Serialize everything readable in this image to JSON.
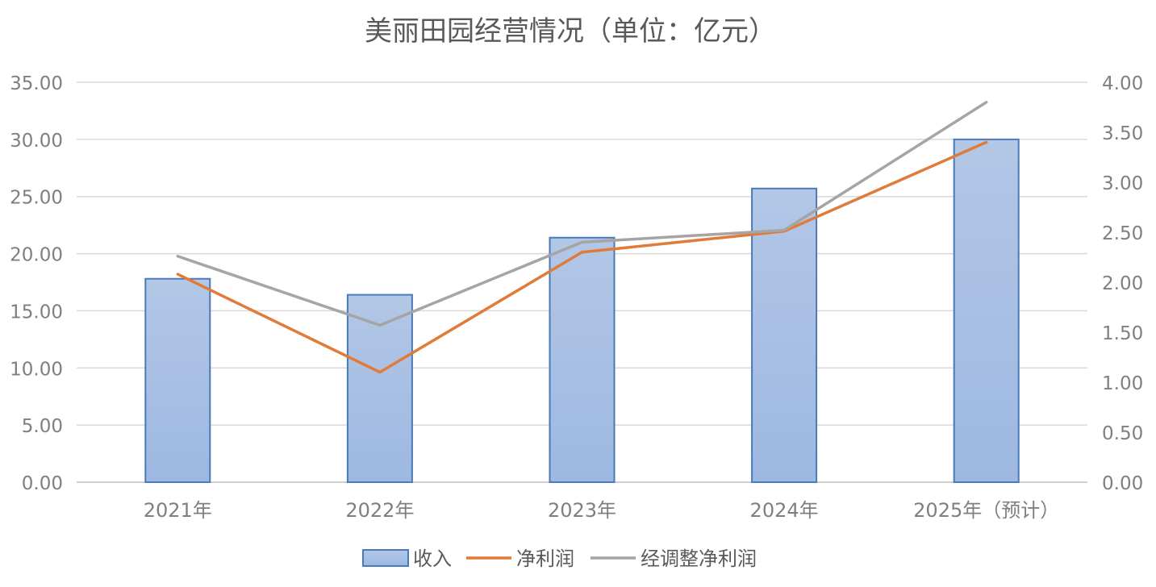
{
  "chart_data": {
    "type": "bar",
    "title": "美丽田园经营情况（单位：亿元）",
    "categories": [
      "2021年",
      "2022年",
      "2023年",
      "2024年",
      "2025年（预计）"
    ],
    "y_left": {
      "ylim": [
        0,
        35
      ],
      "ticks": [
        "0.00",
        "5.00",
        "10.00",
        "15.00",
        "20.00",
        "25.00",
        "30.00",
        "35.00"
      ]
    },
    "y_right": {
      "ylim": [
        0,
        4
      ],
      "ticks": [
        "0.00",
        "0.50",
        "1.00",
        "1.50",
        "2.00",
        "2.50",
        "3.00",
        "3.50",
        "4.00"
      ]
    },
    "series": [
      {
        "name": "收入",
        "type": "bar",
        "axis": "left",
        "color": "#9db8e2",
        "values": [
          17.8,
          16.4,
          21.4,
          25.7,
          30.0
        ]
      },
      {
        "name": "净利润",
        "type": "line",
        "axis": "right",
        "color": "#e07b39",
        "values": [
          2.08,
          1.1,
          2.3,
          2.51,
          3.4
        ]
      },
      {
        "name": "经调整净利润",
        "type": "line",
        "axis": "right",
        "color": "#a5a5a5",
        "values": [
          2.26,
          1.57,
          2.4,
          2.52,
          3.8
        ]
      }
    ],
    "grid": true,
    "legend_position": "bottom"
  }
}
